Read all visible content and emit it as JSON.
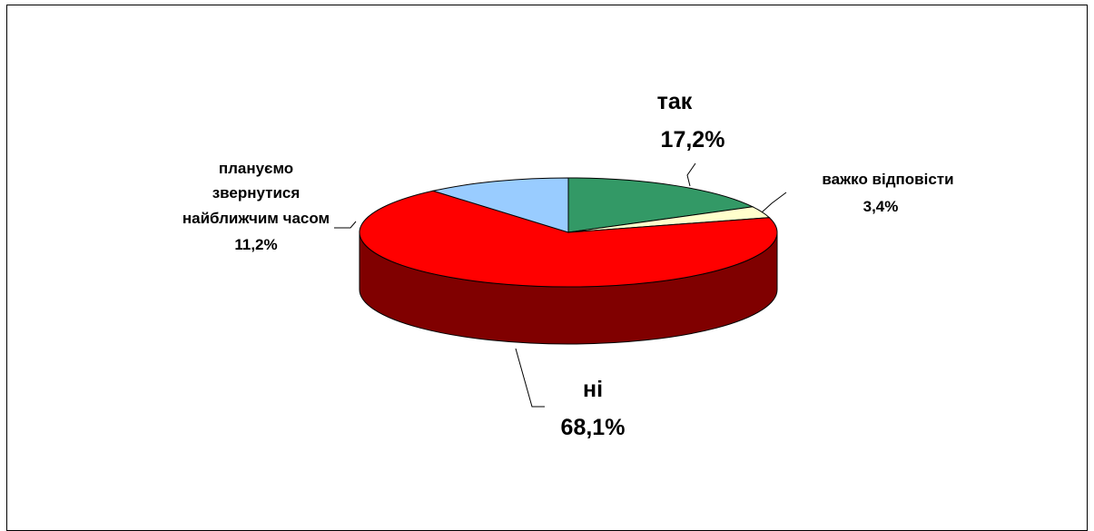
{
  "chart_data": {
    "type": "pie",
    "pie_3d": true,
    "slices": [
      {
        "name": "так",
        "value": 17.2,
        "label_pct": "17,2%",
        "color": "#339966"
      },
      {
        "name": "важко відповісти",
        "value": 3.4,
        "label_pct": "3,4%",
        "color": "#FFFFCC"
      },
      {
        "name": "ні",
        "value": 68.1,
        "label_pct": "68,1%",
        "color": "#FF0000",
        "side_color": "#800000"
      },
      {
        "name": "плануємо звернутися найближчим часом",
        "value": 11.2,
        "label_pct": "11,2%",
        "color": "#99CCFF"
      }
    ],
    "labels": {
      "tak": {
        "name": "так",
        "pct": "17,2%"
      },
      "vazhko": {
        "name": "важко відповісти",
        "pct": "3,4%"
      },
      "ni": {
        "name": "ні",
        "pct": "68,1%"
      },
      "planuyemo": {
        "line1": "плануємо",
        "line2": "звернутися",
        "line3": "найближчим часом",
        "pct": "11,2%"
      }
    }
  }
}
